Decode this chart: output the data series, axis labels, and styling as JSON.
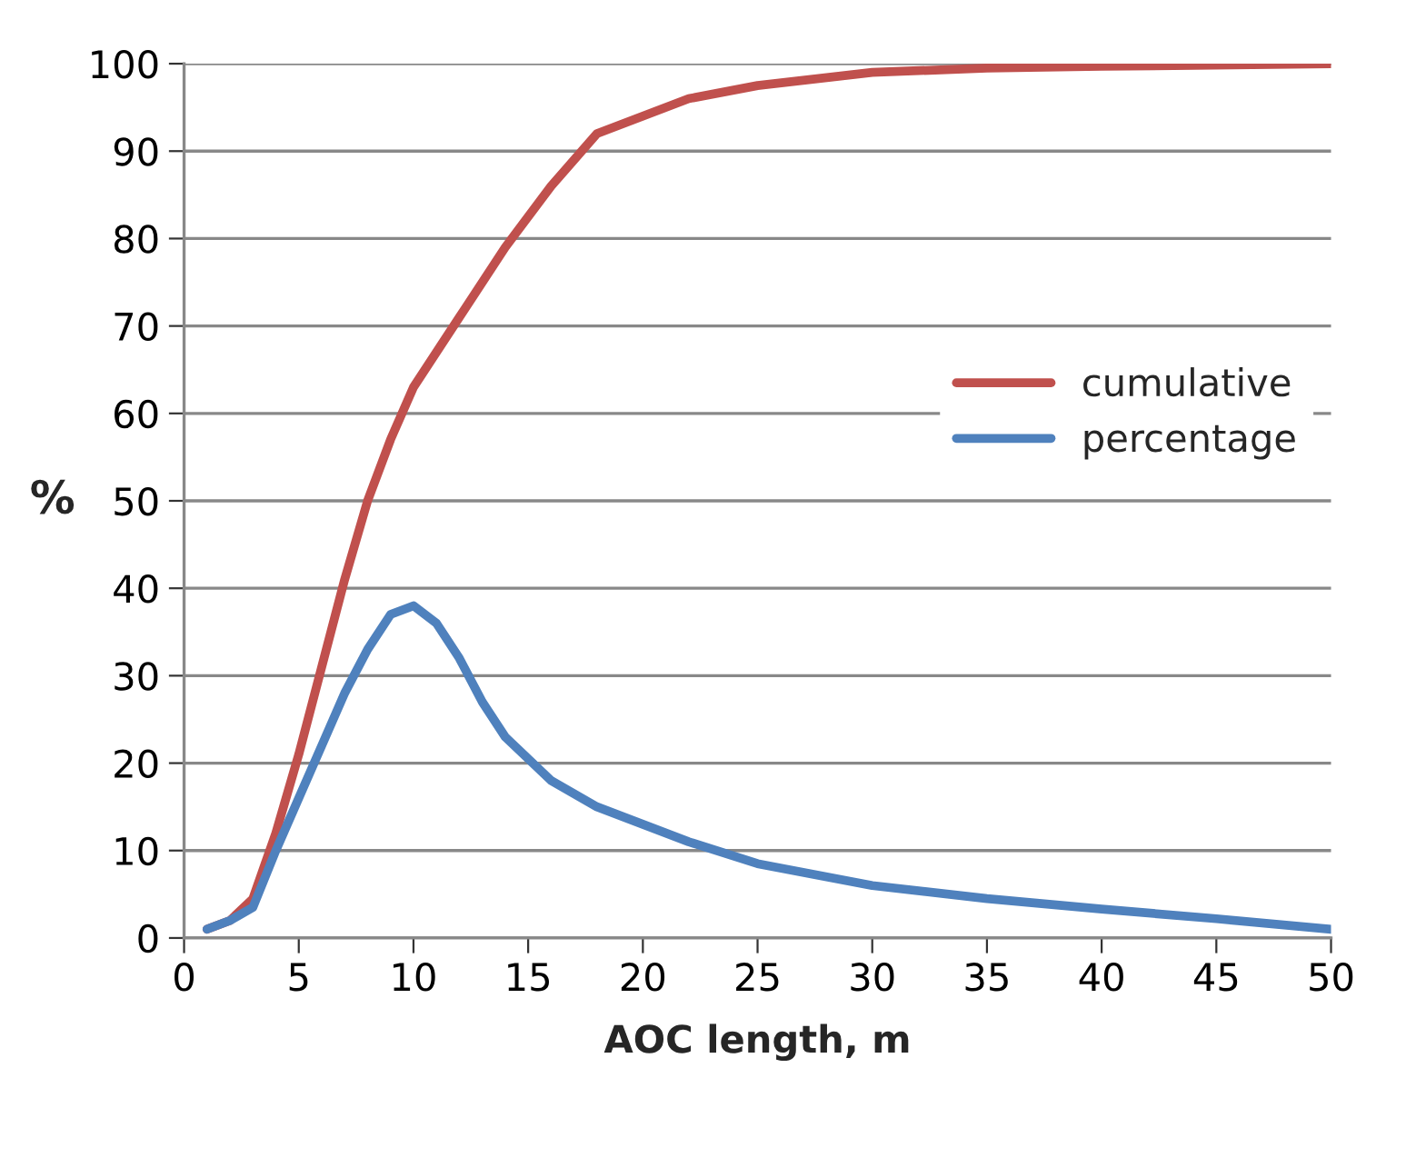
{
  "chart_data": {
    "type": "line",
    "xlabel": "AOC length, m",
    "ylabel": "%",
    "xlim": [
      0,
      50
    ],
    "xticks": [
      0,
      5,
      10,
      15,
      20,
      25,
      30,
      35,
      40,
      45,
      50
    ],
    "ylim": [
      0,
      100
    ],
    "yticks": [
      0,
      10,
      20,
      30,
      40,
      50,
      60,
      70,
      80,
      90,
      100
    ],
    "grid": "y",
    "legend": "right",
    "marker": "none",
    "line_style": "solid",
    "series": [
      {
        "name": "cumulative",
        "color": "#c0504d",
        "x": [
          1,
          2,
          3,
          4,
          5,
          6,
          7,
          8,
          9,
          10,
          12,
          14,
          16,
          18,
          20,
          22,
          25,
          30,
          35,
          40,
          50
        ],
        "values": [
          1,
          2,
          4.5,
          12,
          21,
          31,
          41,
          50,
          57,
          63,
          71,
          79,
          86,
          92,
          94,
          96,
          97.5,
          99,
          99.5,
          99.7,
          100
        ]
      },
      {
        "name": "percentage",
        "color": "#4f81bd",
        "x": [
          1,
          2,
          3,
          4,
          5,
          6,
          7,
          8,
          9,
          10,
          11,
          12,
          13,
          14,
          15,
          16,
          18,
          20,
          22,
          25,
          30,
          35,
          40,
          45,
          50
        ],
        "values": [
          1,
          2,
          3.5,
          10,
          16,
          22,
          28,
          33,
          37,
          38,
          36,
          32,
          27,
          23,
          20.5,
          18,
          15,
          13,
          11,
          8.5,
          6,
          4.5,
          3.3,
          2.2,
          1
        ]
      }
    ]
  }
}
